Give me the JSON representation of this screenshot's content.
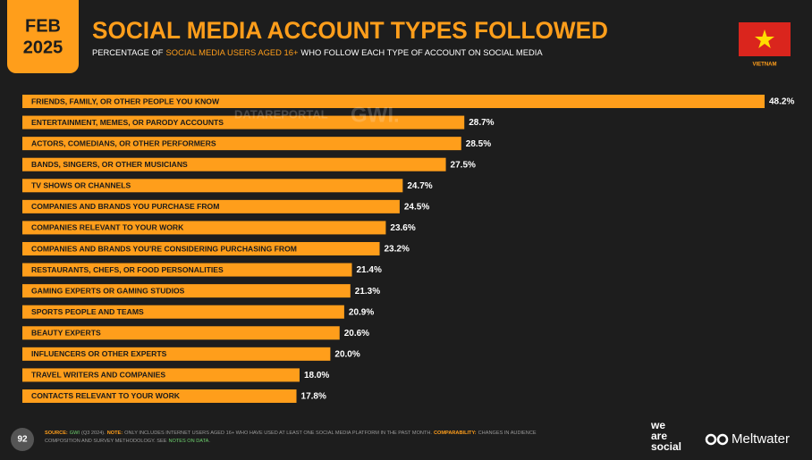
{
  "header": {
    "month": "FEB",
    "year": "2025",
    "country": "VIETNAM",
    "page_number": "92"
  },
  "chart_data": {
    "type": "bar",
    "orientation": "horizontal",
    "title": "SOCIAL MEDIA ACCOUNT TYPES FOLLOWED",
    "subtitle": [
      "PERCENTAGE OF",
      "SOCIAL MEDIA USERS AGED 16+",
      "WHO FOLLOW EACH TYPE OF ACCOUNT ON SOCIAL MEDIA"
    ],
    "categories": [
      "FRIENDS, FAMILY, OR OTHER PEOPLE YOU KNOW",
      "ENTERTAINMENT, MEMES, OR PARODY ACCOUNTS",
      "ACTORS, COMEDIANS, OR OTHER PERFORMERS",
      "BANDS, SINGERS, OR OTHER MUSICIANS",
      "TV SHOWS OR CHANNELS",
      "COMPANIES AND BRANDS YOU PURCHASE FROM",
      "COMPANIES RELEVANT TO YOUR WORK",
      "COMPANIES AND BRANDS YOU'RE CONSIDERING PURCHASING FROM",
      "RESTAURANTS, CHEFS, OR FOOD PERSONALITIES",
      "GAMING EXPERTS OR GAMING STUDIOS",
      "SPORTS PEOPLE AND TEAMS",
      "BEAUTY EXPERTS",
      "INFLUENCERS OR OTHER EXPERTS",
      "TRAVEL WRITERS AND COMPANIES",
      "CONTACTS RELEVANT TO YOUR WORK"
    ],
    "values": [
      48.2,
      28.7,
      28.5,
      27.5,
      24.7,
      24.5,
      23.6,
      23.2,
      21.4,
      21.3,
      20.9,
      20.6,
      20.0,
      18.0,
      17.8
    ],
    "value_labels": [
      "48.2%",
      "28.7%",
      "28.5%",
      "27.5%",
      "24.7%",
      "24.5%",
      "23.6%",
      "23.2%",
      "21.4%",
      "21.3%",
      "20.9%",
      "20.6%",
      "20.0%",
      "18.0%",
      "17.8%"
    ],
    "color": "#ff9e1b"
  },
  "watermark": [
    "DATAREPORTAL",
    "GWI."
  ],
  "footer": {
    "line1": [
      "SOURCE:",
      "GWI",
      "(Q3 2024).",
      "NOTE:",
      "ONLY INCLUDES INTERNET USERS AGED 16+ WHO HAVE USED AT LEAST ONE SOCIAL MEDIA PLATFORM IN THE PAST MONTH.",
      "COMPARABILITY:",
      "CHANGES IN AUDIENCE"
    ],
    "line2": [
      "COMPOSITION AND SURVEY METHODOLOGY. SEE",
      "NOTES ON DATA",
      "."
    ]
  },
  "logos": {
    "we_are_social": [
      "we",
      "are",
      "social"
    ],
    "meltwater": "Meltwater"
  }
}
